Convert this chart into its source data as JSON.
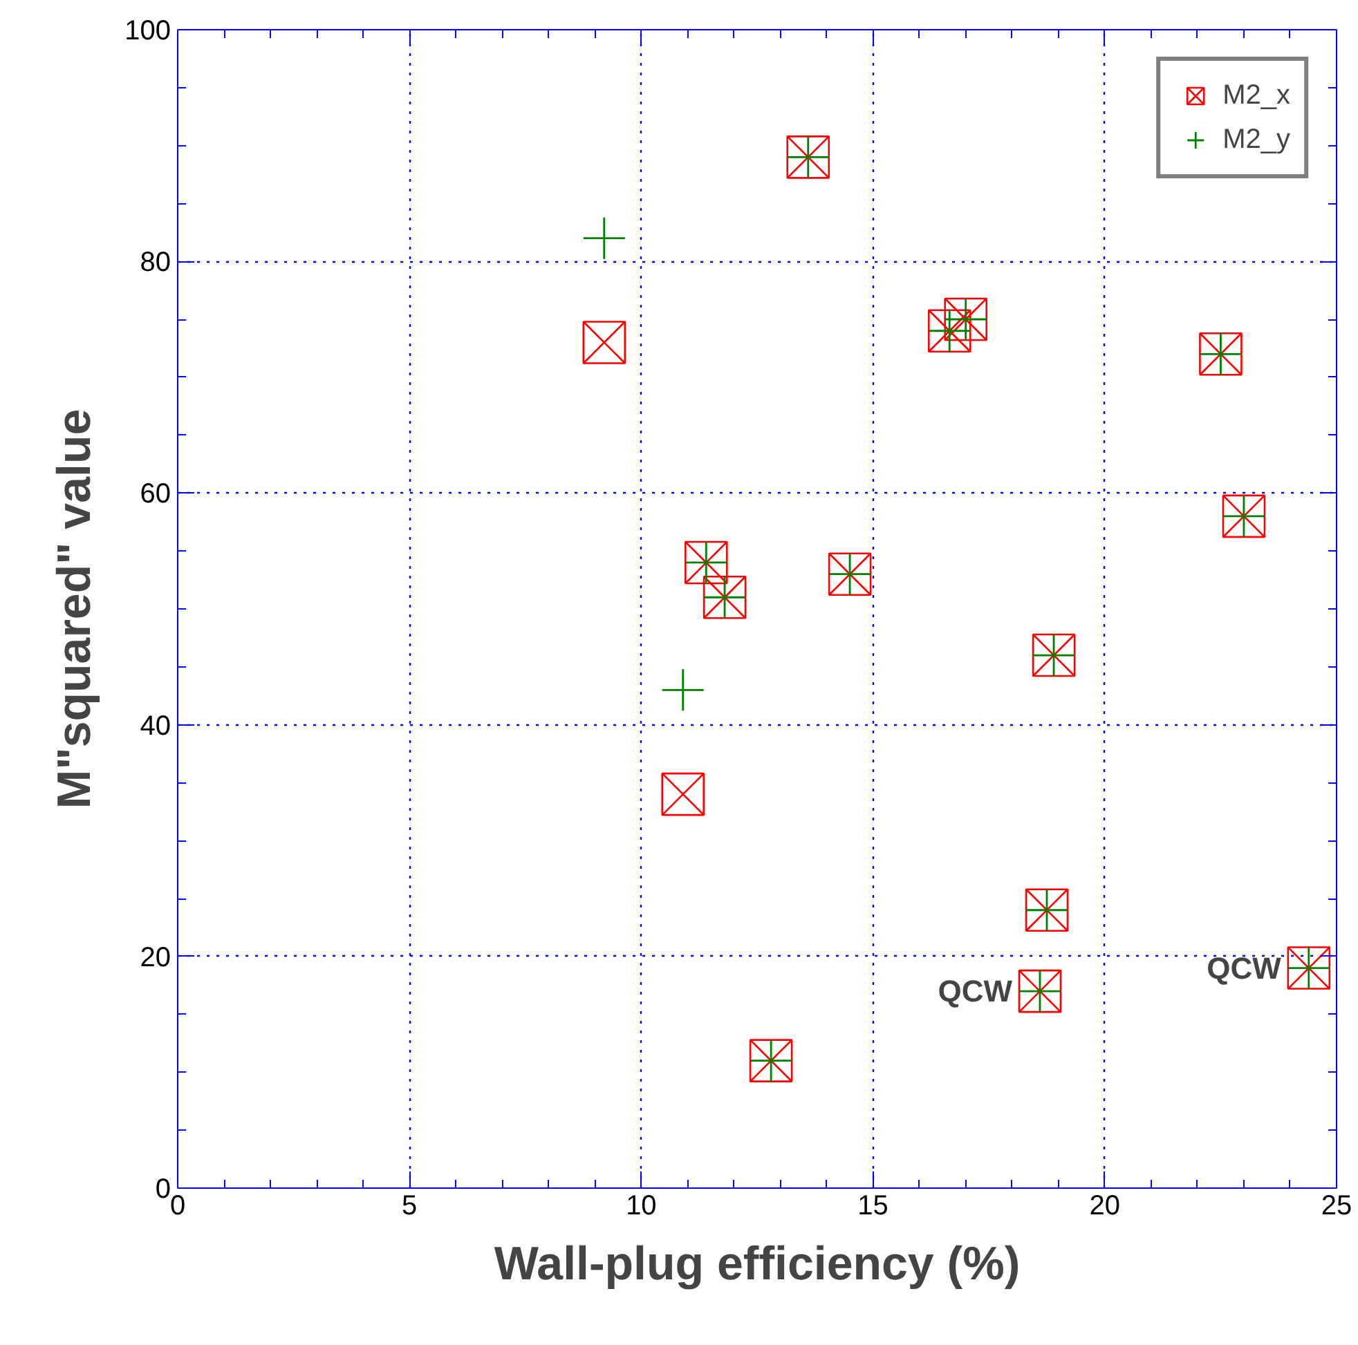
{
  "chart_data": {
    "type": "scatter",
    "xlabel": "Wall-plug efficiency (%)",
    "ylabel": "M\"squared\" value",
    "x": [
      9.2,
      13.6,
      16.65,
      17.0,
      22.5,
      23.0,
      11.4,
      11.8,
      14.5,
      18.9,
      10.9,
      18.75,
      18.6,
      24.4,
      12.8
    ],
    "series": [
      {
        "name": "M2_x",
        "color": "#ff0000",
        "marker": "square",
        "values": [
          73,
          89,
          74,
          75,
          72,
          58,
          54,
          51,
          53,
          46,
          34,
          24,
          17,
          19,
          11
        ]
      },
      {
        "name": "M2_y",
        "color": "#008000",
        "marker": "cross",
        "values": [
          82,
          89,
          74,
          75,
          72,
          58,
          54,
          51,
          53,
          46,
          43,
          24,
          17,
          19,
          11
        ]
      }
    ],
    "xlim": [
      0,
      25
    ],
    "ylim": [
      0,
      100
    ],
    "xticks": [
      0,
      5,
      10,
      15,
      20,
      25
    ],
    "yticks": [
      0,
      20,
      40,
      60,
      80,
      100
    ],
    "grid": true,
    "legend": "top right",
    "annotations": [
      {
        "text": "QCW",
        "x": 18.6,
        "y": 17
      },
      {
        "text": "QCW",
        "x": 24.4,
        "y": 19
      }
    ]
  }
}
